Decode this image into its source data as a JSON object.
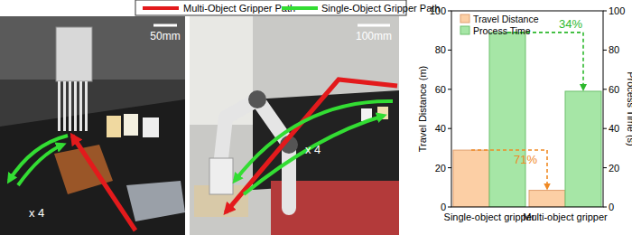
{
  "chart_data": {
    "type": "bar",
    "categories": [
      "Single-object gripper",
      "Multi-object gripper"
    ],
    "series": [
      {
        "name": "Travel Distance",
        "color": "#fccfa5",
        "values": [
          29,
          8.5
        ],
        "axis": "y"
      },
      {
        "name": "Process Time",
        "color": "#a6e6a6",
        "values": [
          89,
          59
        ],
        "axis": "y2"
      }
    ],
    "y_label": "Travel Distance (m)",
    "y2_label": "Process Time (s)",
    "ylim": [
      0,
      100
    ],
    "yticks": [
      0,
      20,
      40,
      60,
      80,
      100
    ],
    "y2lim": [
      0,
      100
    ],
    "y2ticks": [
      0,
      20,
      40,
      60,
      80,
      100
    ],
    "annotations": [
      "71%",
      "34%"
    ],
    "legend": "upper left",
    "grid": false
  },
  "figure": {
    "legend": [
      {
        "text": "Multi-Object Gripper Path",
        "color": "#e31a1c"
      },
      {
        "text": "Single-Object Gripper Path",
        "color": "#33dd33"
      }
    ],
    "panels": [
      {
        "scale_bar": "50mm",
        "repeat": "x 4"
      },
      {
        "scale_bar": "100mm",
        "repeat": "x 4"
      }
    ]
  }
}
